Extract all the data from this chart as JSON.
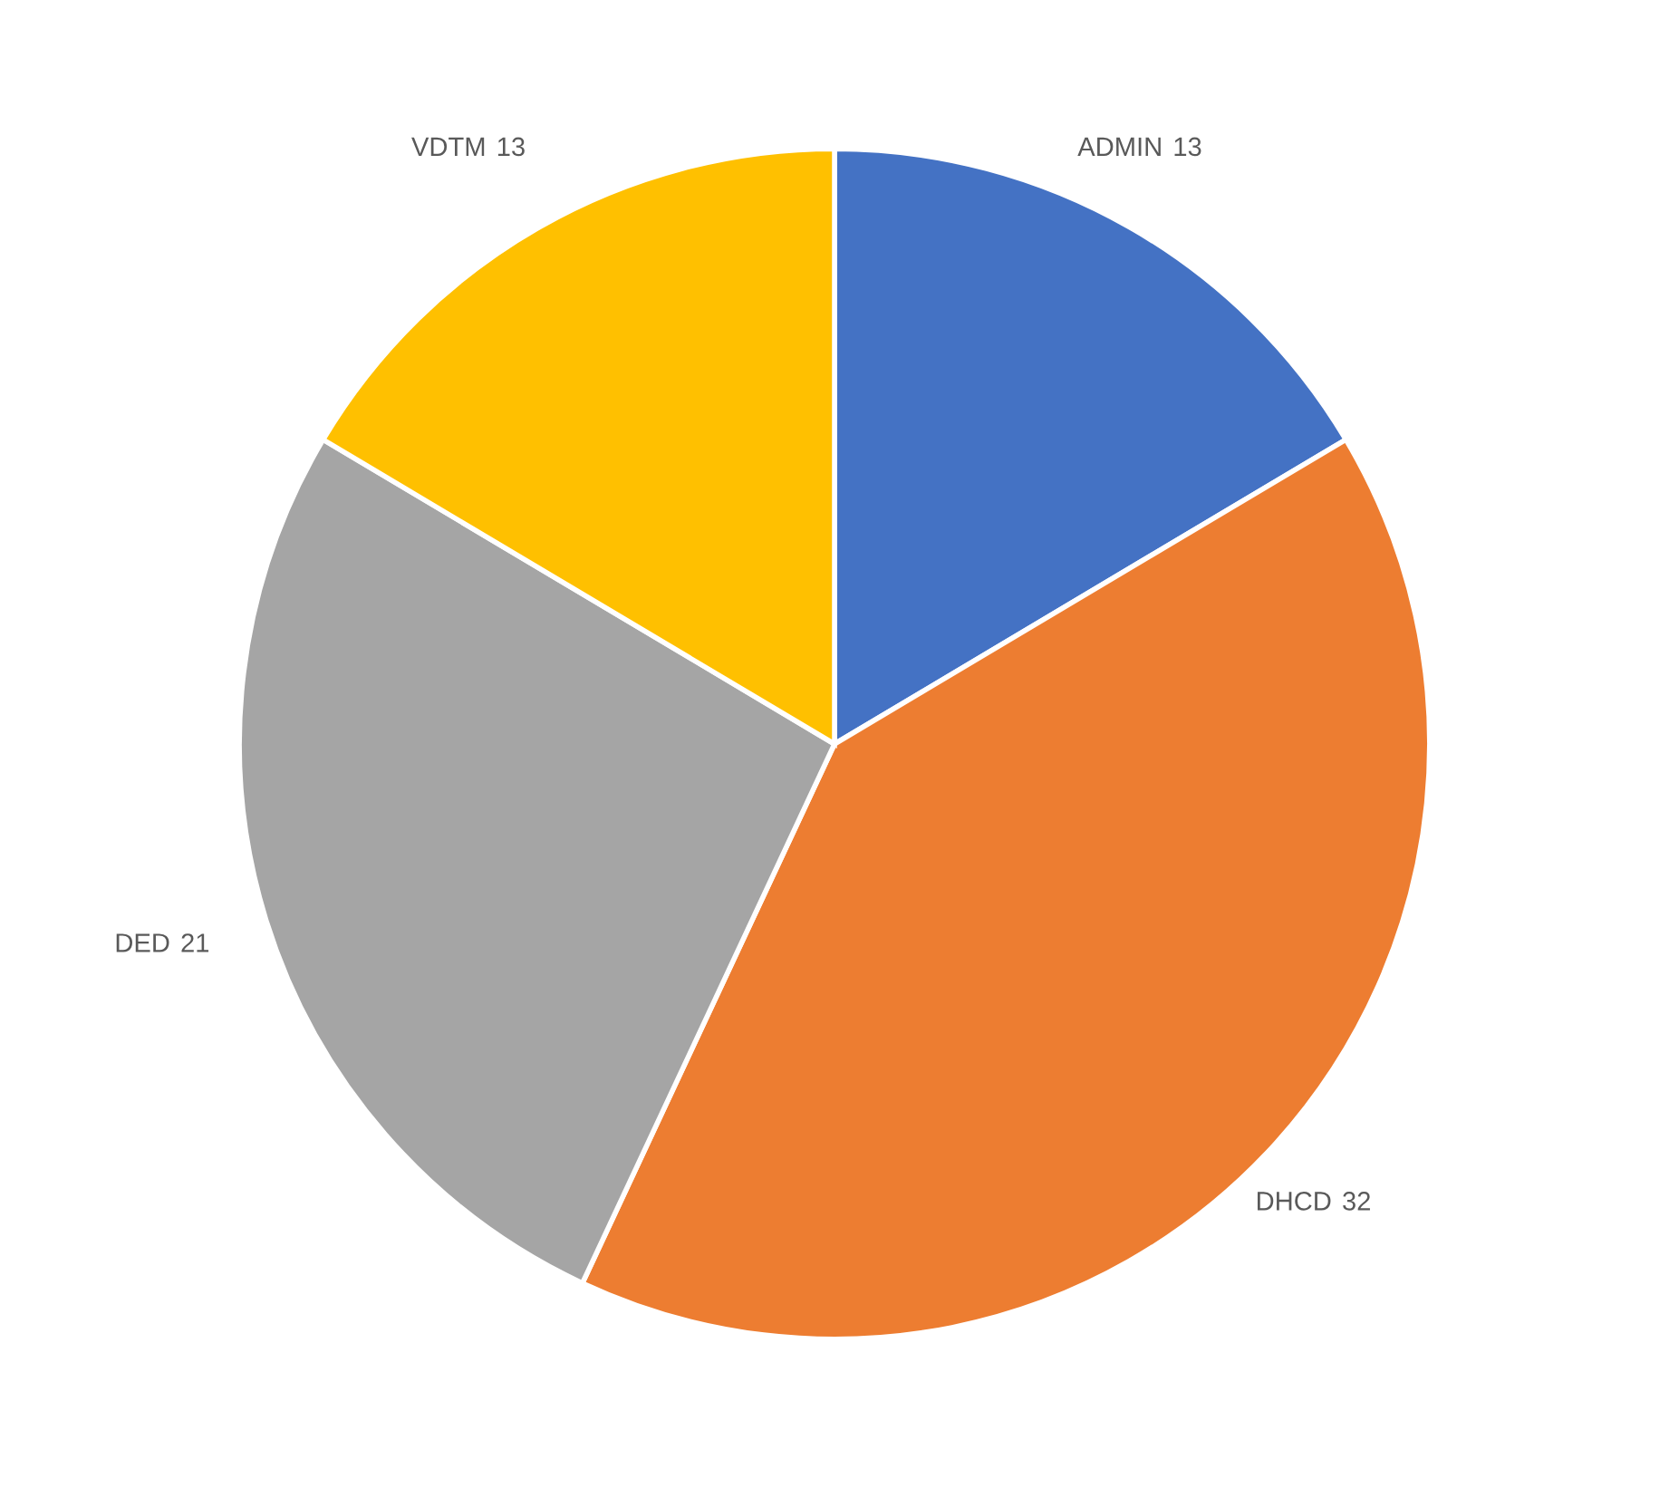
{
  "chart_data": {
    "type": "pie",
    "categories": [
      "ADMIN",
      "DHCD",
      "DED",
      "VDTM"
    ],
    "values": [
      13,
      32,
      21,
      13
    ],
    "colors": [
      "#4472c4",
      "#ed7d31",
      "#a5a5a5",
      "#ffc000"
    ],
    "data_labels": true,
    "legend": false
  }
}
